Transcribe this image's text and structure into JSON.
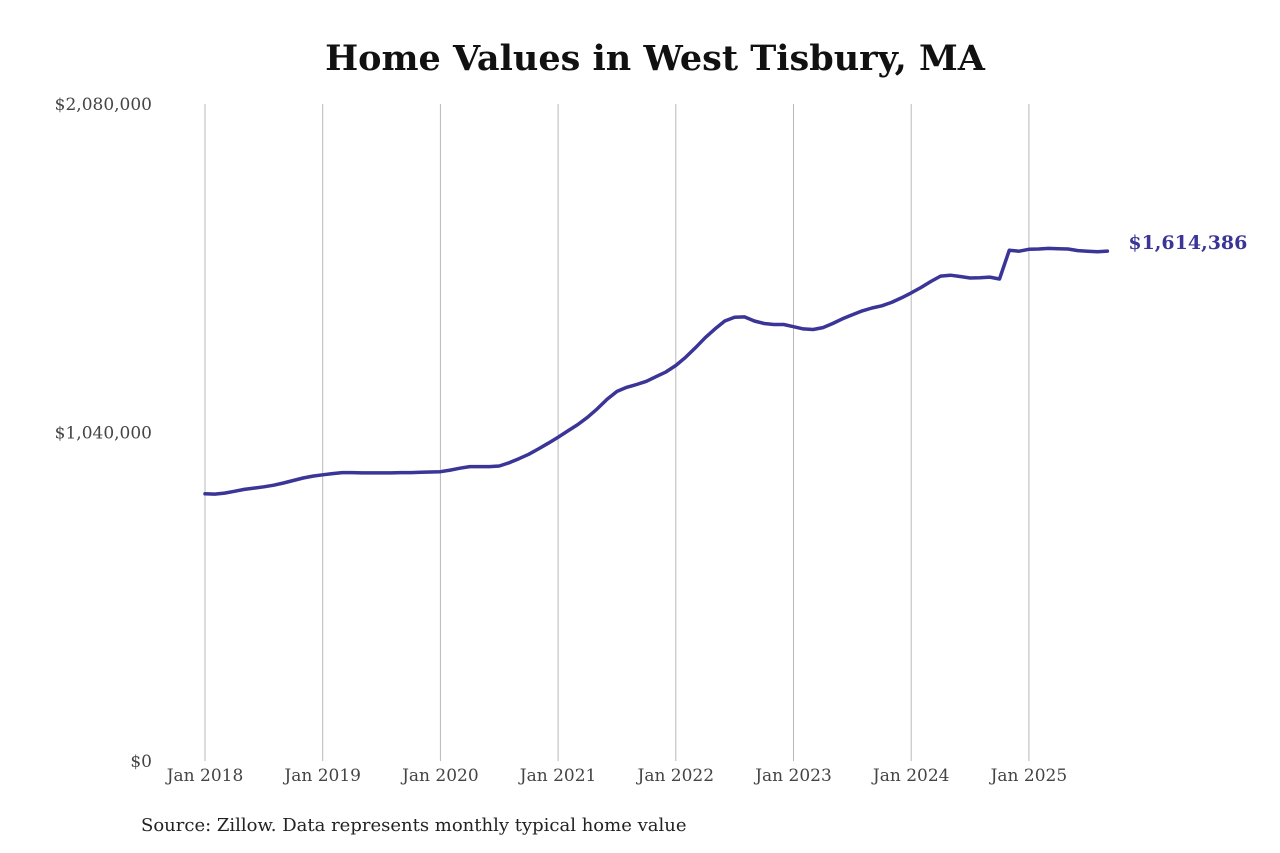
{
  "chart_data": {
    "type": "line",
    "title": "Home Values in West Tisbury, MA",
    "source": "Source: Zillow. Data represents monthly typical home value",
    "ylim": [
      0,
      2080000
    ],
    "y_ticks": [
      {
        "value": 0,
        "label": "$0"
      },
      {
        "value": 1040000,
        "label": "$1,040,000"
      },
      {
        "value": 2080000,
        "label": "$2,080,000"
      }
    ],
    "x_ticks": [
      {
        "value": "2018-01",
        "label": "Jan 2018"
      },
      {
        "value": "2019-01",
        "label": "Jan 2019"
      },
      {
        "value": "2020-01",
        "label": "Jan 2020"
      },
      {
        "value": "2021-01",
        "label": "Jan 2021"
      },
      {
        "value": "2022-01",
        "label": "Jan 2022"
      },
      {
        "value": "2023-01",
        "label": "Jan 2023"
      },
      {
        "value": "2024-01",
        "label": "Jan 2024"
      },
      {
        "value": "2025-01",
        "label": "Jan 2025"
      }
    ],
    "grid": "vertical",
    "line_color": "#3a3597",
    "end_label": "$1,614,386",
    "series": [
      {
        "x": [
          "2018-01",
          "2018-02",
          "2018-03",
          "2018-04",
          "2018-05",
          "2018-06",
          "2018-07",
          "2018-08",
          "2018-09",
          "2018-10",
          "2018-11",
          "2018-12",
          "2019-01",
          "2019-02",
          "2019-03",
          "2019-04",
          "2019-05",
          "2019-06",
          "2019-07",
          "2019-08",
          "2019-09",
          "2019-10",
          "2019-11",
          "2019-12",
          "2020-01",
          "2020-02",
          "2020-03",
          "2020-04",
          "2020-05",
          "2020-06",
          "2020-07",
          "2020-08",
          "2020-09",
          "2020-10",
          "2020-11",
          "2020-12",
          "2021-01",
          "2021-02",
          "2021-03",
          "2021-04",
          "2021-05",
          "2021-06",
          "2021-07",
          "2021-08",
          "2021-09",
          "2021-10",
          "2021-11",
          "2021-12",
          "2022-01",
          "2022-02",
          "2022-03",
          "2022-04",
          "2022-05",
          "2022-06",
          "2022-07",
          "2022-08",
          "2022-09",
          "2022-10",
          "2022-11",
          "2022-12",
          "2023-01",
          "2023-02",
          "2023-03",
          "2023-04",
          "2023-05",
          "2023-06",
          "2023-07",
          "2023-08",
          "2023-09",
          "2023-10",
          "2023-11",
          "2023-12",
          "2024-01",
          "2024-02",
          "2024-03",
          "2024-04",
          "2024-05",
          "2024-06",
          "2024-07",
          "2024-08",
          "2024-09",
          "2024-10",
          "2024-11",
          "2024-12",
          "2025-01",
          "2025-02",
          "2025-03",
          "2025-04",
          "2025-05",
          "2025-06",
          "2025-07",
          "2025-08",
          "2025-09"
        ],
        "values": [
          846000,
          845000,
          848000,
          854000,
          860000,
          864000,
          868000,
          873000,
          880000,
          888000,
          896000,
          902000,
          906000,
          910000,
          913000,
          913000,
          912000,
          912000,
          912000,
          912000,
          913000,
          913000,
          914000,
          915000,
          916000,
          921000,
          927000,
          932000,
          932000,
          932000,
          934000,
          944000,
          957000,
          971000,
          988000,
          1006000,
          1025000,
          1045000,
          1065000,
          1088000,
          1115000,
          1145000,
          1170000,
          1183000,
          1192000,
          1202000,
          1217000,
          1232000,
          1252000,
          1278000,
          1308000,
          1340000,
          1368000,
          1393000,
          1405000,
          1406000,
          1393000,
          1385000,
          1382000,
          1382000,
          1375000,
          1368000,
          1366000,
          1372000,
          1385000,
          1400000,
          1413000,
          1425000,
          1434000,
          1441000,
          1452000,
          1466000,
          1482000,
          1499000,
          1518000,
          1535000,
          1538000,
          1534000,
          1529000,
          1530000,
          1532000,
          1526000,
          1617000,
          1614000,
          1620000,
          1621000,
          1623000,
          1622000,
          1621000,
          1616000,
          1614000,
          1612000,
          1614386
        ]
      }
    ]
  }
}
